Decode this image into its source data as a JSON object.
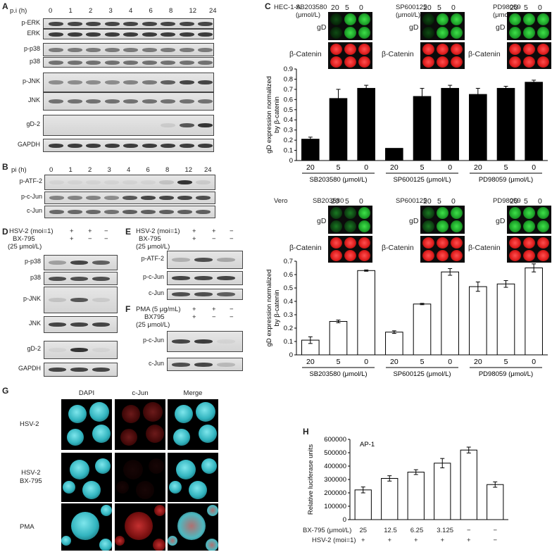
{
  "panels": {
    "A": {
      "letter": "A",
      "time_label": "p.i (h)",
      "times": [
        "0",
        "1",
        "2",
        "3",
        "4",
        "6",
        "8",
        "12",
        "24"
      ],
      "rows": [
        "p-ERK",
        "ERK",
        "p-p38",
        "p38",
        "p-JNK",
        "JNK",
        "gD-2",
        "GAPDH"
      ]
    },
    "B": {
      "letter": "B",
      "time_label": "pi (h)",
      "times": [
        "0",
        "1",
        "2",
        "3",
        "4",
        "6",
        "8",
        "12",
        "24"
      ],
      "rows": [
        "p-ATF-2",
        "p-c-Jun",
        "c-Jun"
      ]
    },
    "C": {
      "letter": "C",
      "cell_top": "HEC-1-A",
      "cell_bottom": "Vero",
      "inhibitors": [
        "SB203580",
        "SP600125",
        "PD98059"
      ],
      "unit": "(μmol/L)",
      "doses": [
        "20",
        "5",
        "0"
      ],
      "well_gd": "gD",
      "well_bcat": "β-Catenin"
    },
    "D": {
      "letter": "D",
      "cond_labels": [
        "HSV-2 (moi=1)",
        "BX-795",
        "(25 μmol/L)"
      ],
      "signs_row1": [
        "+",
        "+",
        "−"
      ],
      "signs_row2": [
        "+",
        "−",
        "−"
      ],
      "rows": [
        "p-p38",
        "p38",
        "p-JNK",
        "JNK",
        "gD-2",
        "GAPDH"
      ]
    },
    "E": {
      "letter": "E",
      "cond_labels": [
        "HSV-2 (moi=1)",
        "BX-795",
        "(25 μmol/L)"
      ],
      "signs_row1": [
        "+",
        "+",
        "−"
      ],
      "signs_row2": [
        "+",
        "−",
        "−"
      ],
      "rows": [
        "p-ATF-2",
        "p-c-Jun",
        "c-Jun"
      ]
    },
    "F": {
      "letter": "F",
      "cond_labels": [
        "PMA (5 μg/mL)",
        "BX795",
        "(25 μmol/L)"
      ],
      "signs_row1": [
        "+",
        "+",
        "−"
      ],
      "signs_row2": [
        "+",
        "−",
        "−"
      ],
      "rows": [
        "p-c-Jun",
        "c-Jun"
      ]
    },
    "G": {
      "letter": "G",
      "columns": [
        "DAPI",
        "c-Jun",
        "Merge"
      ],
      "rows": [
        "HSV-2",
        "HSV-2\nBX-795",
        "PMA"
      ]
    },
    "H": {
      "letter": "H",
      "row1_label": "BX-795 (μmol/L)",
      "row1_values": [
        "25",
        "12.5",
        "6.25",
        "3.125",
        "−",
        "−"
      ],
      "row2_label": "HSV-2 (moi=1)",
      "row2_values": [
        "+",
        "+",
        "+",
        "+",
        "+",
        "−"
      ]
    }
  },
  "chart_data": [
    {
      "type": "bar",
      "id": "C-top",
      "ylabel": "gD expression normalized\nby β-catenin",
      "ylim": [
        0,
        0.9
      ],
      "yticks": [
        "0",
        "0.1",
        "0.2",
        "0.3",
        "0.4",
        "0.5",
        "0.6",
        "0.7",
        "0.8",
        "0.9"
      ],
      "groups": [
        {
          "label": "SB203580 (μmol/L)",
          "categories": [
            "20",
            "5",
            "0"
          ],
          "values": [
            0.21,
            0.61,
            0.71
          ],
          "errors": [
            0.02,
            0.09,
            0.03
          ]
        },
        {
          "label": "SP600125 (μmol/L)",
          "categories": [
            "20",
            "5",
            "0"
          ],
          "values": [
            0.12,
            0.63,
            0.71
          ],
          "errors": [
            0,
            0.08,
            0.03
          ]
        },
        {
          "label": "PD98059 (μmol/L)",
          "categories": [
            "20",
            "5",
            "0"
          ],
          "values": [
            0.65,
            0.71,
            0.77
          ],
          "errors": [
            0.06,
            0.02,
            0.02
          ]
        }
      ],
      "fill": "#000000"
    },
    {
      "type": "bar",
      "id": "C-bottom",
      "ylabel": "gD expression normalized\nby β-catenin",
      "ylim": [
        0,
        0.7
      ],
      "yticks": [
        "0",
        "0.1",
        "0.2",
        "0.3",
        "0.4",
        "0.5",
        "0.6",
        "0.7"
      ],
      "groups": [
        {
          "label": "SB203580 (μmol/L)",
          "categories": [
            "20",
            "5",
            "0"
          ],
          "values": [
            0.11,
            0.25,
            0.63
          ],
          "errors": [
            0.025,
            0.01,
            0.005
          ]
        },
        {
          "label": "SP600125 (μmol/L)",
          "categories": [
            "20",
            "5",
            "0"
          ],
          "values": [
            0.17,
            0.38,
            0.62
          ],
          "errors": [
            0.01,
            0.005,
            0.025
          ]
        },
        {
          "label": "PD98059 (μmol/L)",
          "categories": [
            "20",
            "5",
            "0"
          ],
          "values": [
            0.51,
            0.53,
            0.65
          ],
          "errors": [
            0.035,
            0.025,
            0.03
          ]
        }
      ],
      "fill": "#ffffff"
    },
    {
      "type": "bar",
      "id": "H",
      "annotation": "AP-1",
      "ylabel": "Relative luciferase units",
      "ylim": [
        0,
        600000
      ],
      "yticks": [
        "0",
        "100000",
        "200000",
        "300000",
        "400000",
        "500000",
        "600000"
      ],
      "values": [
        222000,
        308000,
        355000,
        422000,
        520000,
        262000
      ],
      "errors": [
        22000,
        20000,
        18000,
        35000,
        22000,
        20000
      ],
      "fill": "#ffffff"
    }
  ]
}
